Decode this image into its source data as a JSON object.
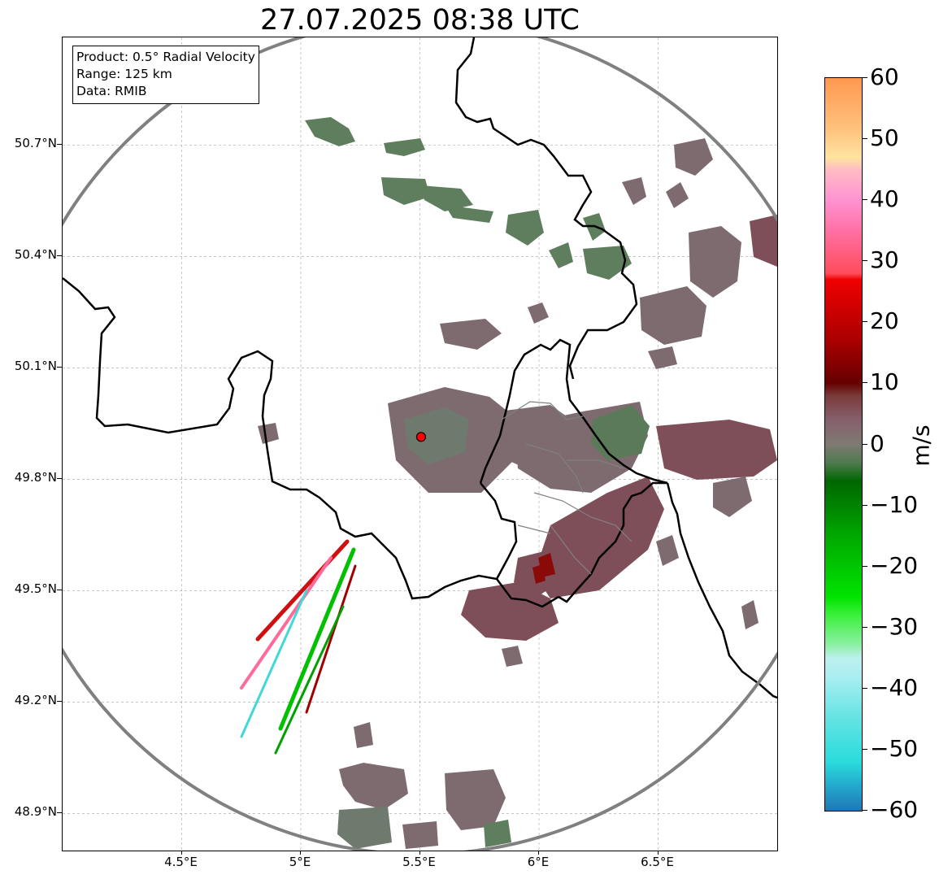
{
  "title": "27.07.2025 08:38 UTC",
  "info_box": {
    "product": "Product: 0.5° Radial Velocity",
    "range": "Range: 125 km",
    "data": "Data: RMIB"
  },
  "map": {
    "lon_range": [
      4.0,
      7.0
    ],
    "lat_range": [
      48.8,
      50.99
    ],
    "radar_site": {
      "lon": 5.505,
      "lat": 49.914
    },
    "range_ring_color": "#808080",
    "radar_marker_color": "#ff0000",
    "latitude_labels": [
      {
        "value": 50.7,
        "text": "50.7°N"
      },
      {
        "value": 50.4,
        "text": "50.4°N"
      },
      {
        "value": 50.1,
        "text": "50.1°N"
      },
      {
        "value": 49.8,
        "text": "49.8°N"
      },
      {
        "value": 49.5,
        "text": "49.5°N"
      },
      {
        "value": 49.2,
        "text": "49.2°N"
      },
      {
        "value": 48.9,
        "text": "48.9°N"
      }
    ],
    "longitude_labels": [
      {
        "value": 4.5,
        "text": "4.5°E"
      },
      {
        "value": 5.0,
        "text": "5°E"
      },
      {
        "value": 5.5,
        "text": "5.5°E"
      },
      {
        "value": 6.0,
        "text": "6°E"
      },
      {
        "value": 6.5,
        "text": "6.5°E"
      }
    ]
  },
  "colorbar": {
    "unit": "m/s",
    "min": -60,
    "max": 60,
    "ticks": [
      {
        "value": 60,
        "text": "60"
      },
      {
        "value": 50,
        "text": "50"
      },
      {
        "value": 40,
        "text": "40"
      },
      {
        "value": 30,
        "text": "30"
      },
      {
        "value": 20,
        "text": "20"
      },
      {
        "value": 10,
        "text": "10"
      },
      {
        "value": 0,
        "text": "0"
      },
      {
        "value": -10,
        "text": "−10"
      },
      {
        "value": -20,
        "text": "−20"
      },
      {
        "value": -30,
        "text": "−30"
      },
      {
        "value": -40,
        "text": "−40"
      },
      {
        "value": -50,
        "text": "−50"
      },
      {
        "value": -60,
        "text": "−60"
      }
    ],
    "color_stops": [
      {
        "value": -60,
        "color": "#1f77b4"
      },
      {
        "value": -56,
        "color": "#22a8cc"
      },
      {
        "value": -52,
        "color": "#2adcdc"
      },
      {
        "value": -45,
        "color": "#63e3e3"
      },
      {
        "value": -38,
        "color": "#aaeef0"
      },
      {
        "value": -35,
        "color": "#bdf0ee"
      },
      {
        "value": -33,
        "color": "#8ff0a8"
      },
      {
        "value": -28,
        "color": "#3cf03c"
      },
      {
        "value": -25,
        "color": "#00e400"
      },
      {
        "value": -15,
        "color": "#00a800"
      },
      {
        "value": -6,
        "color": "#006600"
      },
      {
        "value": -3,
        "color": "#4f7a4f"
      },
      {
        "value": 0,
        "color": "#7f7a72"
      },
      {
        "value": 4,
        "color": "#86606c"
      },
      {
        "value": 8,
        "color": "#7a3a3a"
      },
      {
        "value": 10,
        "color": "#650000"
      },
      {
        "value": 17,
        "color": "#aa0000"
      },
      {
        "value": 27,
        "color": "#f00000"
      },
      {
        "value": 28,
        "color": "#ff4c5c"
      },
      {
        "value": 35,
        "color": "#ff70a4"
      },
      {
        "value": 40,
        "color": "#ff93d2"
      },
      {
        "value": 45,
        "color": "#ffbcc4"
      },
      {
        "value": 47,
        "color": "#ffe4a0"
      },
      {
        "value": 52,
        "color": "#ffc07c"
      },
      {
        "value": 60,
        "color": "#ff9850"
      }
    ]
  }
}
